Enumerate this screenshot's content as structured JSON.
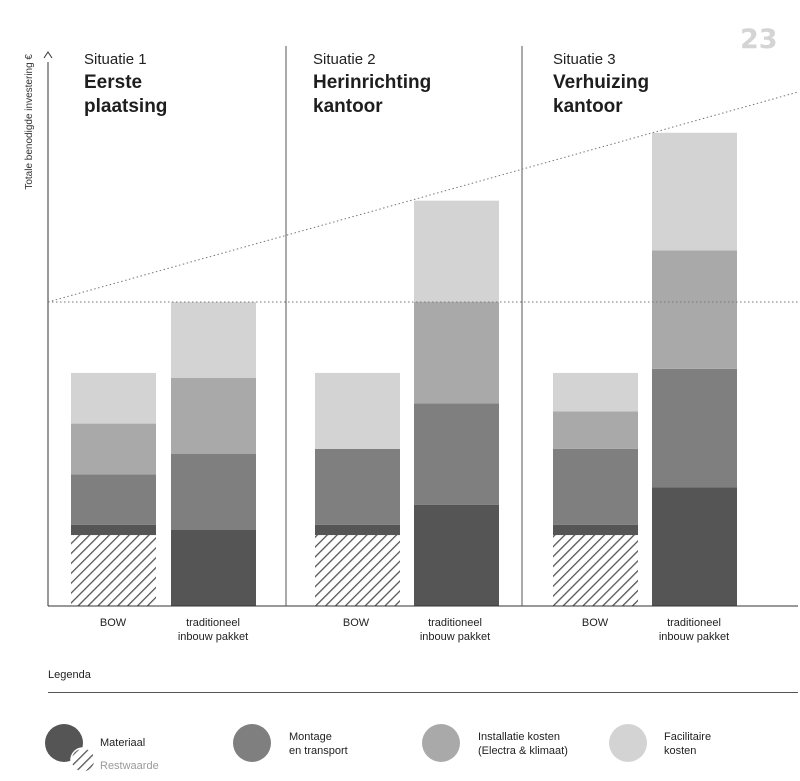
{
  "page_number": "23",
  "colors": {
    "materiaal": "#555555",
    "montage": "#7f7f80",
    "installatie": "#a9a9aa",
    "facilitair": "#d3d3d4",
    "restwaarde": "#555555",
    "axis": "#333333"
  },
  "legend": {
    "title": "Legenda",
    "items": [
      {
        "key": "materiaal",
        "label": "Materiaal",
        "sub_label": "Restwaarde"
      },
      {
        "key": "montage",
        "label": "Montage\nen transport"
      },
      {
        "key": "installatie",
        "label": "Installatie kosten\n(Electra & klimaat)"
      },
      {
        "key": "facilitair",
        "label": "Facilitaire\nkosten"
      }
    ]
  },
  "chart_data": {
    "type": "bar",
    "stacked": true,
    "ylabel": "Totale benodigde investering €",
    "ylim": [
      0,
      480
    ],
    "reference_line": 300,
    "trend_line": {
      "from": 300,
      "to": 510
    },
    "situations": [
      {
        "label": "Situatie 1",
        "title": "Eerste\nplaatsing"
      },
      {
        "label": "Situatie 2",
        "title": "Herinrichting\nkantoor"
      },
      {
        "label": "Situatie 3",
        "title": "Verhuizing\nkantoor"
      }
    ],
    "categories": [
      {
        "situation": 0,
        "label": "BOW"
      },
      {
        "situation": 0,
        "label": "traditioneel\ninbouw pakket"
      },
      {
        "situation": 1,
        "label": "BOW"
      },
      {
        "situation": 1,
        "label": "traditioneel\ninbouw pakket"
      },
      {
        "situation": 2,
        "label": "BOW"
      },
      {
        "situation": 2,
        "label": "traditioneel\ninbouw pakket"
      }
    ],
    "series": [
      {
        "name": "Materiaal",
        "key": "materiaal",
        "values": [
          80,
          75,
          80,
          100,
          80,
          117
        ]
      },
      {
        "name": "Montage en transport",
        "key": "montage",
        "values": [
          50,
          75,
          75,
          100,
          75,
          117
        ]
      },
      {
        "name": "Installatie kosten (Electra & klimaat)",
        "key": "installatie",
        "values": [
          50,
          75,
          0,
          100,
          37,
          117
        ]
      },
      {
        "name": "Facilitaire kosten",
        "key": "facilitair",
        "values": [
          50,
          75,
          75,
          100,
          38,
          116
        ]
      }
    ],
    "restwaarde": [
      70,
      0,
      70,
      0,
      70,
      0
    ]
  }
}
